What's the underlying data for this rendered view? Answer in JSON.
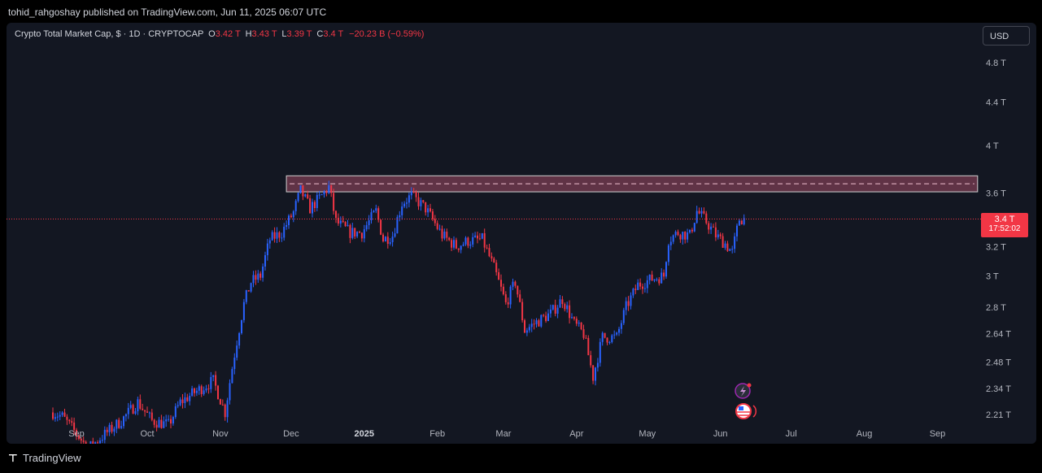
{
  "header": {
    "published_text": "tohid_rahgoshay published on TradingView.com, Jun 11, 2025 06:07 UTC"
  },
  "legend": {
    "symbol": "Crypto Total Market Cap, $ · 1D · CRYPTOCAP",
    "open_label": "O",
    "open": "3.42 T",
    "high_label": "H",
    "high": "3.43 T",
    "low_label": "L",
    "low": "3.39 T",
    "close_label": "C",
    "close": "3.4 T",
    "change": "−20.23 B (−0.59%)"
  },
  "currency_button": "USD",
  "last_price": {
    "value": "3.4 T",
    "countdown": "17:52:02",
    "color": "#f23645"
  },
  "footer": {
    "brand": "TradingView"
  },
  "colors": {
    "up": "#2962ff",
    "down": "#f23645",
    "zone": "#e06080",
    "background": "#131722"
  },
  "chart_data": {
    "type": "candlestick",
    "title": "Crypto Total Market Cap, $ · 1D · CRYPTOCAP",
    "y_scale": "log",
    "y_ticks": [
      {
        "value": 4.8,
        "label": "4.8 T"
      },
      {
        "value": 4.4,
        "label": "4.4 T"
      },
      {
        "value": 4.0,
        "label": "4 T"
      },
      {
        "value": 3.6,
        "label": "3.6 T"
      },
      {
        "value": 3.2,
        "label": "3.2 T"
      },
      {
        "value": 3.0,
        "label": "3 T"
      },
      {
        "value": 2.8,
        "label": "2.8 T"
      },
      {
        "value": 2.64,
        "label": "2.64 T"
      },
      {
        "value": 2.48,
        "label": "2.48 T"
      },
      {
        "value": 2.34,
        "label": "2.34 T"
      },
      {
        "value": 2.21,
        "label": "2.21 T"
      }
    ],
    "x_ticks": [
      {
        "date": "2024-09-01",
        "label": "Sep",
        "bold": false
      },
      {
        "date": "2024-10-01",
        "label": "Oct",
        "bold": false
      },
      {
        "date": "2024-11-01",
        "label": "Nov",
        "bold": false
      },
      {
        "date": "2024-12-01",
        "label": "Dec",
        "bold": false
      },
      {
        "date": "2025-01-01",
        "label": "2025",
        "bold": true
      },
      {
        "date": "2025-02-01",
        "label": "Feb",
        "bold": false
      },
      {
        "date": "2025-03-01",
        "label": "Mar",
        "bold": false
      },
      {
        "date": "2025-04-01",
        "label": "Apr",
        "bold": false
      },
      {
        "date": "2025-05-01",
        "label": "May",
        "bold": false
      },
      {
        "date": "2025-06-01",
        "label": "Jun",
        "bold": false
      },
      {
        "date": "2025-07-01",
        "label": "Jul",
        "bold": false
      },
      {
        "date": "2025-08-01",
        "label": "Aug",
        "bold": false
      },
      {
        "date": "2025-09-01",
        "label": "Sep",
        "bold": false
      }
    ],
    "close_path": [
      {
        "date": "2024-08-22",
        "close": 2.22
      },
      {
        "date": "2024-08-26",
        "close": 2.2
      },
      {
        "date": "2024-09-06",
        "close": 2.05
      },
      {
        "date": "2024-09-20",
        "close": 2.18
      },
      {
        "date": "2024-09-27",
        "close": 2.27
      },
      {
        "date": "2024-10-03",
        "close": 2.18
      },
      {
        "date": "2024-10-10",
        "close": 2.16
      },
      {
        "date": "2024-10-15",
        "close": 2.27
      },
      {
        "date": "2024-10-21",
        "close": 2.32
      },
      {
        "date": "2024-10-29",
        "close": 2.38
      },
      {
        "date": "2024-11-03",
        "close": 2.22
      },
      {
        "date": "2024-11-06",
        "close": 2.45
      },
      {
        "date": "2024-11-11",
        "close": 2.82
      },
      {
        "date": "2024-11-14",
        "close": 2.96
      },
      {
        "date": "2024-11-18",
        "close": 3.0
      },
      {
        "date": "2024-11-22",
        "close": 3.25
      },
      {
        "date": "2024-11-27",
        "close": 3.3
      },
      {
        "date": "2024-12-02",
        "close": 3.45
      },
      {
        "date": "2024-12-05",
        "close": 3.62
      },
      {
        "date": "2024-12-09",
        "close": 3.48
      },
      {
        "date": "2024-12-14",
        "close": 3.58
      },
      {
        "date": "2024-12-17",
        "close": 3.65
      },
      {
        "date": "2024-12-20",
        "close": 3.38
      },
      {
        "date": "2024-12-26",
        "close": 3.3
      },
      {
        "date": "2024-12-31",
        "close": 3.3
      },
      {
        "date": "2025-01-06",
        "close": 3.46
      },
      {
        "date": "2025-01-09",
        "close": 3.25
      },
      {
        "date": "2025-01-13",
        "close": 3.28
      },
      {
        "date": "2025-01-17",
        "close": 3.52
      },
      {
        "date": "2025-01-21",
        "close": 3.58
      },
      {
        "date": "2025-01-27",
        "close": 3.48
      },
      {
        "date": "2025-02-03",
        "close": 3.28
      },
      {
        "date": "2025-02-09",
        "close": 3.2
      },
      {
        "date": "2025-02-14",
        "close": 3.24
      },
      {
        "date": "2025-02-20",
        "close": 3.25
      },
      {
        "date": "2025-02-25",
        "close": 3.05
      },
      {
        "date": "2025-03-02",
        "close": 2.82
      },
      {
        "date": "2025-03-06",
        "close": 2.96
      },
      {
        "date": "2025-03-10",
        "close": 2.66
      },
      {
        "date": "2025-03-14",
        "close": 2.7
      },
      {
        "date": "2025-03-21",
        "close": 2.76
      },
      {
        "date": "2025-03-26",
        "close": 2.85
      },
      {
        "date": "2025-03-31",
        "close": 2.7
      },
      {
        "date": "2025-04-04",
        "close": 2.64
      },
      {
        "date": "2025-04-08",
        "close": 2.4
      },
      {
        "date": "2025-04-12",
        "close": 2.62
      },
      {
        "date": "2025-04-18",
        "close": 2.62
      },
      {
        "date": "2025-04-22",
        "close": 2.8
      },
      {
        "date": "2025-04-27",
        "close": 2.94
      },
      {
        "date": "2025-05-03",
        "close": 2.98
      },
      {
        "date": "2025-05-08",
        "close": 3.0
      },
      {
        "date": "2025-05-10",
        "close": 3.25
      },
      {
        "date": "2025-05-14",
        "close": 3.3
      },
      {
        "date": "2025-05-19",
        "close": 3.28
      },
      {
        "date": "2025-05-22",
        "close": 3.46
      },
      {
        "date": "2025-05-26",
        "close": 3.38
      },
      {
        "date": "2025-05-30",
        "close": 3.28
      },
      {
        "date": "2025-06-03",
        "close": 3.22
      },
      {
        "date": "2025-06-06",
        "close": 3.16
      },
      {
        "date": "2025-06-09",
        "close": 3.4
      },
      {
        "date": "2025-06-11",
        "close": 3.4
      }
    ],
    "resistance_zone": {
      "low": 3.61,
      "high": 3.74,
      "start": "2024-11-29",
      "end": "2025-09-18"
    },
    "last_close": 3.4
  }
}
